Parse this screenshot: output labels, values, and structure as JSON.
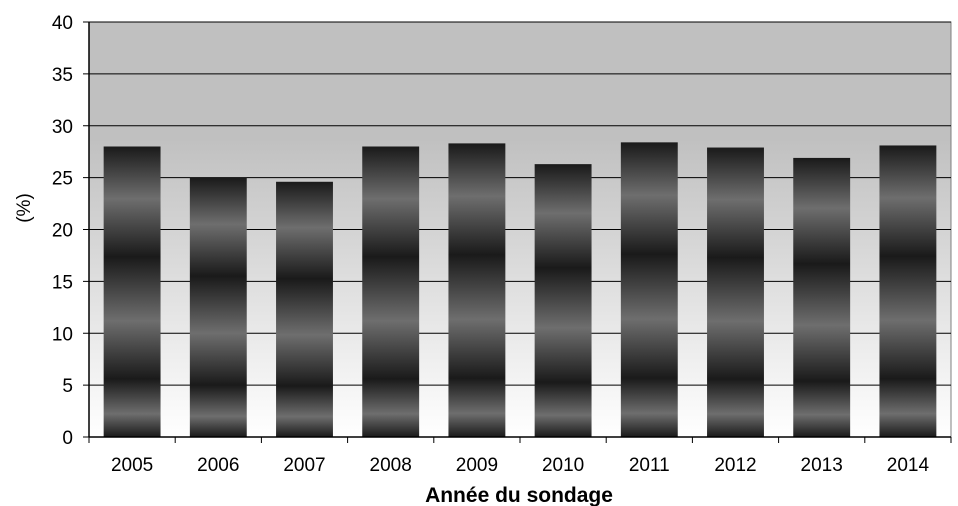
{
  "chart_data": {
    "type": "bar",
    "title": "",
    "xlabel": "Année du sondage",
    "ylabel": "(%)",
    "categories": [
      "2005",
      "2006",
      "2007",
      "2008",
      "2009",
      "2010",
      "2011",
      "2012",
      "2013",
      "2014"
    ],
    "values": [
      28.0,
      25.0,
      24.6,
      28.0,
      28.3,
      26.3,
      28.4,
      27.9,
      26.9,
      28.1
    ],
    "ylim": [
      0,
      40
    ],
    "yticks": [
      "0",
      "5",
      "10",
      "15",
      "20",
      "25",
      "30",
      "35",
      "40"
    ],
    "grid": true,
    "legend": "none",
    "colors": {
      "bar_dark": "#1a1a1a",
      "bar_mid": "#6e6e6e",
      "plot_bg_top": "#c0c0c0",
      "plot_bg_bottom": "#ffffff",
      "gridline": "#000000"
    }
  }
}
